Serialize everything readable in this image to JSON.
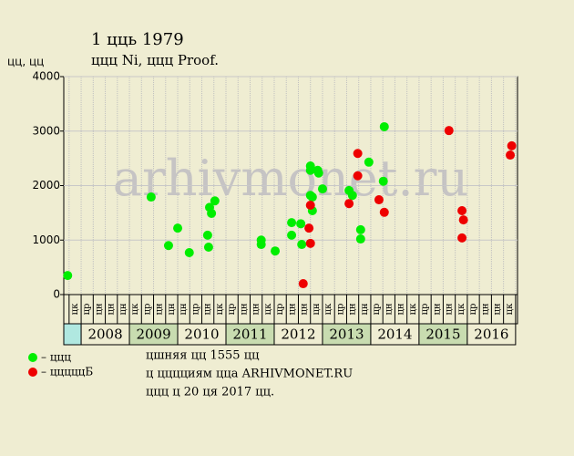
{
  "chart_data": {
    "type": "scatter",
    "title": "1 цць 1979",
    "subtitle": "ццц Ni, ццц Proof.",
    "y_label": "цц, цц",
    "watermark": "arhivmonet.ru",
    "xlim": [
      2007.64,
      2017.04
    ],
    "ylim": [
      0,
      4000
    ],
    "yticks": [
      0,
      1000,
      2000,
      3000,
      4000
    ],
    "grid": true,
    "year_labels": [
      {
        "value": 2008,
        "label": "2008"
      },
      {
        "value": 2009,
        "label": "2009"
      },
      {
        "value": 2010,
        "label": "2010"
      },
      {
        "value": 2011,
        "label": "2011"
      },
      {
        "value": 2012,
        "label": "2012"
      },
      {
        "value": 2013,
        "label": "2013"
      },
      {
        "value": 2014,
        "label": "2014"
      },
      {
        "value": 2015,
        "label": "2015"
      },
      {
        "value": 2016,
        "label": "2016"
      }
    ],
    "column_ticks": [
      2007.75,
      2008,
      2008.25,
      2008.5,
      2008.75,
      2009,
      2009.25,
      2009.5,
      2009.75,
      2010,
      2010.25,
      2010.5,
      2010.75,
      2011,
      2011.25,
      2011.5,
      2011.75,
      2012,
      2012.25,
      2012.5,
      2012.75,
      2013,
      2013.25,
      2013.5,
      2013.75,
      2014,
      2014.25,
      2014.5,
      2014.75,
      2015,
      2015.25,
      2015.5,
      2015.75,
      2016,
      2016.25,
      2016.5,
      2016.75,
      2017
    ],
    "column_labels": [
      "цк",
      "цр",
      "цн",
      "цн",
      "цн",
      "цк",
      "цр",
      "цн",
      "цн",
      "цн",
      "цр",
      "цн",
      "цк",
      "цр",
      "цн",
      "цн",
      "цк",
      "цр",
      "цн",
      "цн",
      "цн",
      "цк",
      "цр",
      "цн",
      "цн",
      "цр",
      "цн",
      "цн",
      "цк",
      "цр",
      "цн",
      "цн",
      "цк",
      "цр",
      "цн",
      "цн",
      "цк"
    ],
    "series": [
      {
        "name": "– ццц",
        "color": "#00ee00",
        "x": [
          2007.72,
          2009.45,
          2009.81,
          2010.0,
          2010.24,
          2010.62,
          2010.64,
          2010.66,
          2010.7,
          2010.77,
          2011.73,
          2011.73,
          2012.02,
          2012.36,
          2012.36,
          2012.55,
          2012.57,
          2012.75,
          2012.75,
          2012.75,
          2012.79,
          2012.79,
          2012.9,
          2012.92,
          2013.0,
          2013.55,
          2013.62,
          2013.79,
          2013.79,
          2013.96,
          2014.26,
          2014.28
        ],
        "values": [
          350,
          1790,
          900,
          1220,
          770,
          1090,
          870,
          1600,
          1490,
          1720,
          1000,
          920,
          800,
          1320,
          1090,
          1300,
          920,
          2360,
          2280,
          1820,
          1790,
          1540,
          2280,
          2230,
          1940,
          1910,
          1820,
          1190,
          1020,
          2430,
          2080,
          3080
        ]
      },
      {
        "name": "– цццццБ",
        "color": "#ee0000",
        "x": [
          2012.6,
          2012.72,
          2012.75,
          2012.75,
          2013.55,
          2013.73,
          2013.73,
          2014.17,
          2014.28,
          2015.62,
          2015.89,
          2015.92,
          2015.89,
          2016.89,
          2016.92
        ],
        "values": [
          200,
          1220,
          1640,
          940,
          1670,
          2180,
          2590,
          1740,
          1510,
          3010,
          1540,
          1370,
          1040,
          2560,
          2730
        ]
      }
    ],
    "notes": [
      "цшняя цц 1555 цц",
      "ц цццциям ццa ARHIVMONET.RU",
      "ццц ц 20 ця 2017 цц."
    ]
  }
}
